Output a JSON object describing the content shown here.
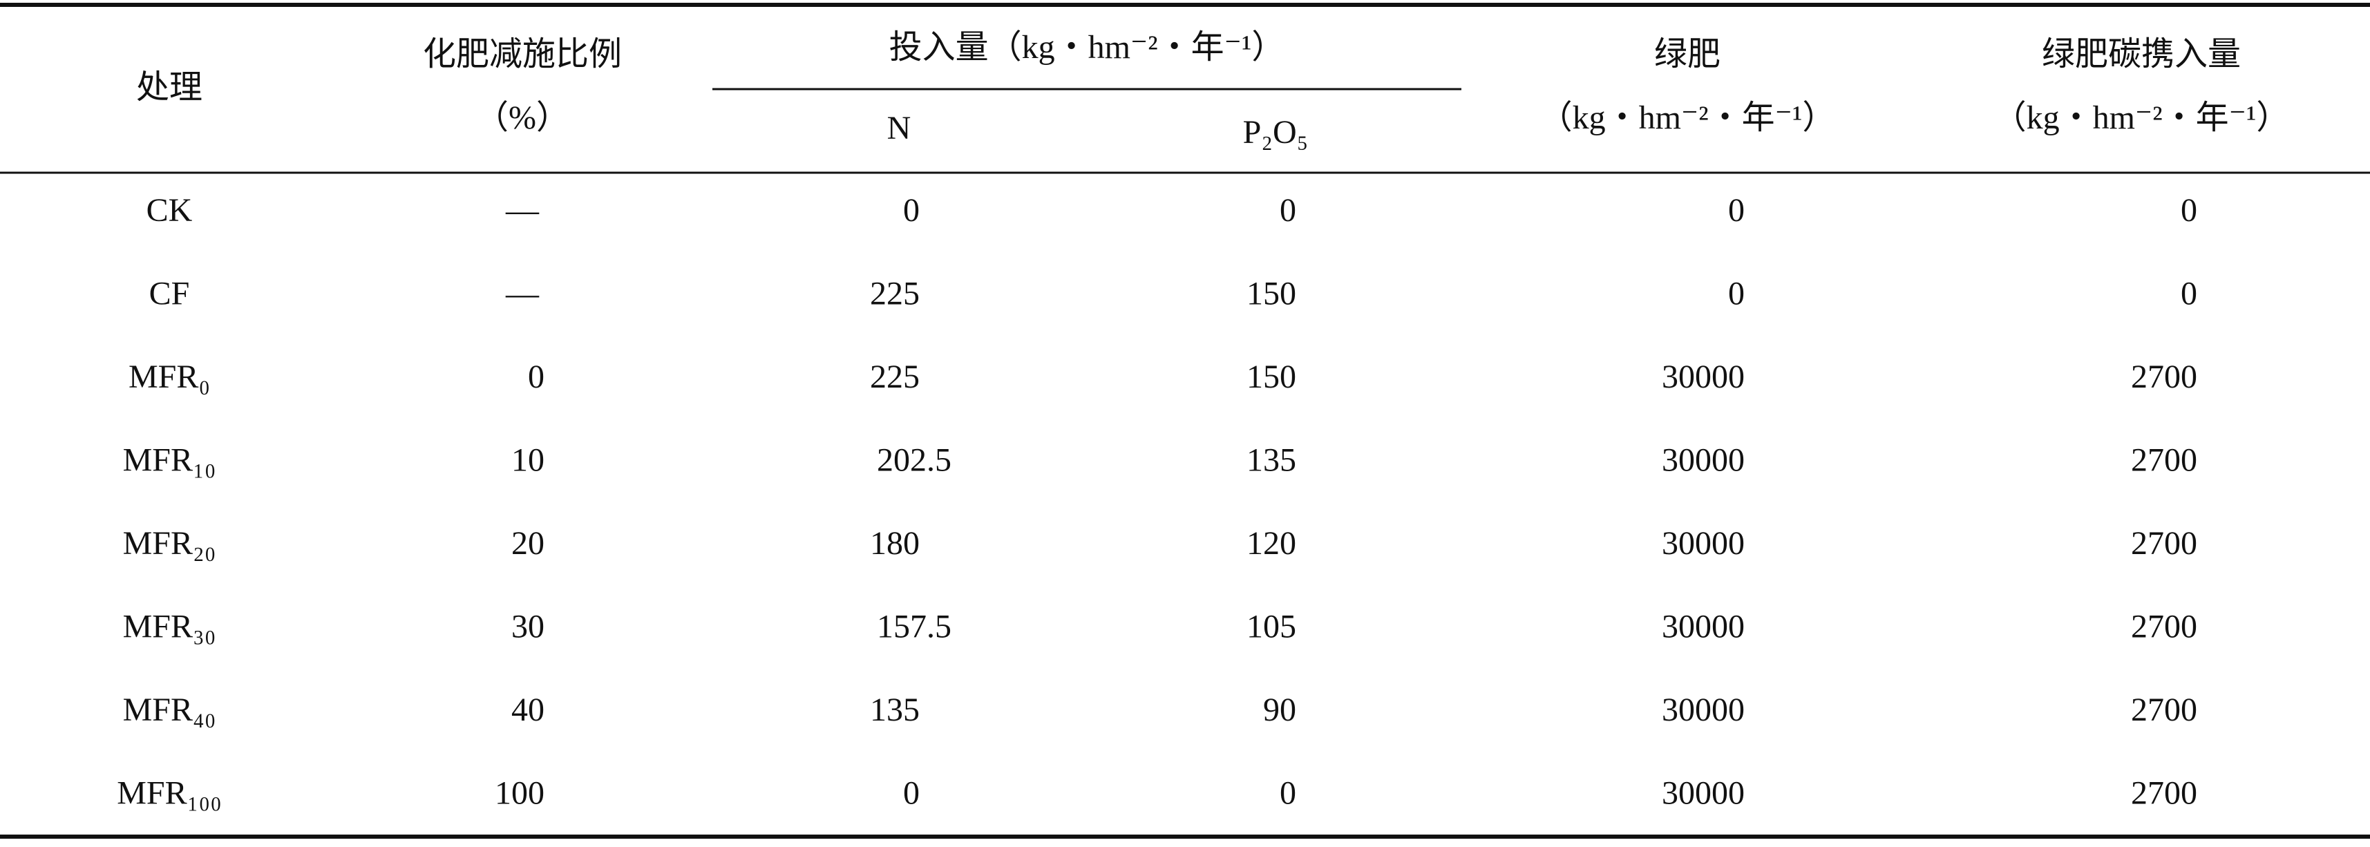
{
  "header": {
    "treatment": "处理",
    "reduction": [
      "化肥减施比例",
      "（%）"
    ],
    "input": {
      "title": "投入量（kg・hm⁻²・年⁻¹）",
      "n": "N",
      "p2o5": "P₂O₅"
    },
    "green_manure": [
      "绿肥",
      "（kg・hm⁻²・年⁻¹）"
    ],
    "carbon": [
      "绿肥碳携入量",
      "（kg・hm⁻²・年⁻¹）"
    ]
  },
  "rows": [
    [
      "CK",
      "—",
      0,
      0,
      0,
      0
    ],
    [
      "CF",
      "—",
      225,
      150,
      0,
      0
    ],
    [
      "MFR₀",
      0,
      225,
      150,
      30000,
      2700
    ],
    [
      "MFR₁₀",
      10,
      202.5,
      135,
      30000,
      2700
    ],
    [
      "MFR₂₀",
      20,
      180,
      120,
      30000,
      2700
    ],
    [
      "MFR₃₀",
      30,
      157.5,
      105,
      30000,
      2700
    ],
    [
      "MFR₄₀",
      40,
      135,
      90,
      30000,
      2700
    ],
    [
      "MFR₁₀₀",
      100,
      0,
      0,
      30000,
      2700
    ]
  ]
}
